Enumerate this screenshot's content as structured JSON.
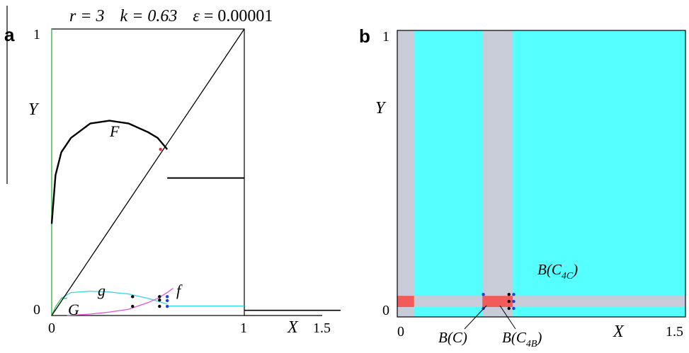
{
  "title": {
    "r_text": "r = 3",
    "k_text": "k = 0.63",
    "eps_symbol": "ε",
    "eps_value": " = 0.00001"
  },
  "panel_a": {
    "letter": "a"
  },
  "panel_b": {
    "letter": "b"
  },
  "chart_data": [
    {
      "panel": "a",
      "type": "line",
      "xlabel": "X",
      "ylabel": "Y",
      "xlim": [
        0,
        1.5
      ],
      "ylim": [
        0,
        1
      ],
      "x_tick_labels": [
        "0",
        "1",
        "1.5"
      ],
      "y_tick_labels": [
        "0",
        "1"
      ],
      "colors": {
        "F": "#000000",
        "g": "#33d6e6",
        "f": "#e34fd6",
        "G": "#33cc55",
        "diagonal": "#000000"
      },
      "series": [
        {
          "name": "F",
          "x": [
            0.0,
            0.02,
            0.05,
            0.1,
            0.2,
            0.3,
            0.4,
            0.5,
            0.55,
            0.6
          ],
          "y": [
            0.32,
            0.49,
            0.57,
            0.62,
            0.67,
            0.68,
            0.67,
            0.64,
            0.62,
            0.58
          ]
        },
        {
          "name": "g",
          "x": [
            0.05,
            0.1,
            0.2,
            0.3,
            0.4,
            0.5,
            0.55,
            0.6
          ],
          "y": [
            0.06,
            0.08,
            0.085,
            0.082,
            0.075,
            0.06,
            0.05,
            0.04
          ]
        },
        {
          "name": "f",
          "x": [
            0.08,
            0.2,
            0.3,
            0.4,
            0.5,
            0.55,
            0.6,
            0.63
          ],
          "y": [
            0.0,
            0.005,
            0.012,
            0.022,
            0.045,
            0.06,
            0.08,
            0.095
          ]
        },
        {
          "name": "G",
          "x": [
            0.0,
            0.02,
            0.05,
            0.08
          ],
          "y": [
            0.0,
            0.03,
            0.06,
            0.06
          ]
        },
        {
          "name": "",
          "x": [
            0.0,
            1.0
          ],
          "y": [
            0.0,
            1.0
          ]
        }
      ],
      "segments": [
        {
          "x": [
            0.6,
            1.0
          ],
          "y": [
            0.48,
            0.48
          ]
        },
        {
          "x": [
            0.6,
            1.0
          ],
          "y": [
            0.033,
            0.033
          ]
        },
        {
          "x": [
            1.0,
            1.5
          ],
          "y": [
            0.018,
            0.018
          ]
        }
      ],
      "points": [
        {
          "x": 0.42,
          "y": 0.066,
          "color": "#000000"
        },
        {
          "x": 0.42,
          "y": 0.032,
          "color": "#000000"
        },
        {
          "x": 0.56,
          "y": 0.066,
          "color": "#000000"
        },
        {
          "x": 0.56,
          "y": 0.054,
          "color": "#000000"
        },
        {
          "x": 0.56,
          "y": 0.032,
          "color": "#000000"
        },
        {
          "x": 0.6,
          "y": 0.066,
          "color": "#1f3fd6"
        },
        {
          "x": 0.6,
          "y": 0.052,
          "color": "#1f3fd6"
        },
        {
          "x": 0.6,
          "y": 0.032,
          "color": "#1f3fd6"
        },
        {
          "x": 0.565,
          "y": 0.58,
          "color": "#e0342f"
        }
      ],
      "curve_labels": [
        "F",
        "g",
        "f",
        "G"
      ]
    },
    {
      "panel": "b",
      "type": "heatmap",
      "xlabel": "X",
      "ylabel": "Y",
      "xlim": [
        0,
        1.5
      ],
      "ylim": [
        0,
        1
      ],
      "x_tick_labels": [
        "0",
        "1.5"
      ],
      "y_tick_labels": [
        "0",
        "1"
      ],
      "colors": {
        "background": "#55fffd",
        "strip": "#c8cbd8",
        "square": "#f35a5a"
      },
      "strips": [
        {
          "axis": "x",
          "range": [
            -0.02,
            0.07
          ]
        },
        {
          "axis": "x",
          "range": [
            0.43,
            0.59
          ]
        },
        {
          "axis": "y",
          "range": [
            0.005,
            0.045
          ]
        }
      ],
      "squares": [
        {
          "x": [
            -0.02,
            0.07
          ],
          "y": [
            0.005,
            0.045
          ]
        },
        {
          "x": [
            0.43,
            0.59
          ],
          "y": [
            0.005,
            0.045
          ]
        }
      ],
      "points": [
        {
          "x": 0.435,
          "y": 0.05,
          "color": "#1f3fd6"
        },
        {
          "x": 0.435,
          "y": 0.0,
          "color": "#1f3fd6"
        },
        {
          "x": 0.57,
          "y": 0.05,
          "color": "#000000"
        },
        {
          "x": 0.57,
          "y": 0.025,
          "color": "#000000"
        },
        {
          "x": 0.57,
          "y": 0.0,
          "color": "#000000"
        },
        {
          "x": 0.595,
          "y": 0.05,
          "color": "#1f3fd6"
        },
        {
          "x": 0.595,
          "y": 0.025,
          "color": "#1f3fd6"
        },
        {
          "x": 0.595,
          "y": 0.0,
          "color": "#1f3fd6"
        }
      ],
      "region_labels": [
        {
          "base": "B(C",
          "sub": "4C",
          "close": ")"
        },
        {
          "base": "B(C)",
          "sub": "",
          "close": ""
        },
        {
          "base": "B(C",
          "sub": "4B",
          "close": ")"
        }
      ]
    }
  ]
}
